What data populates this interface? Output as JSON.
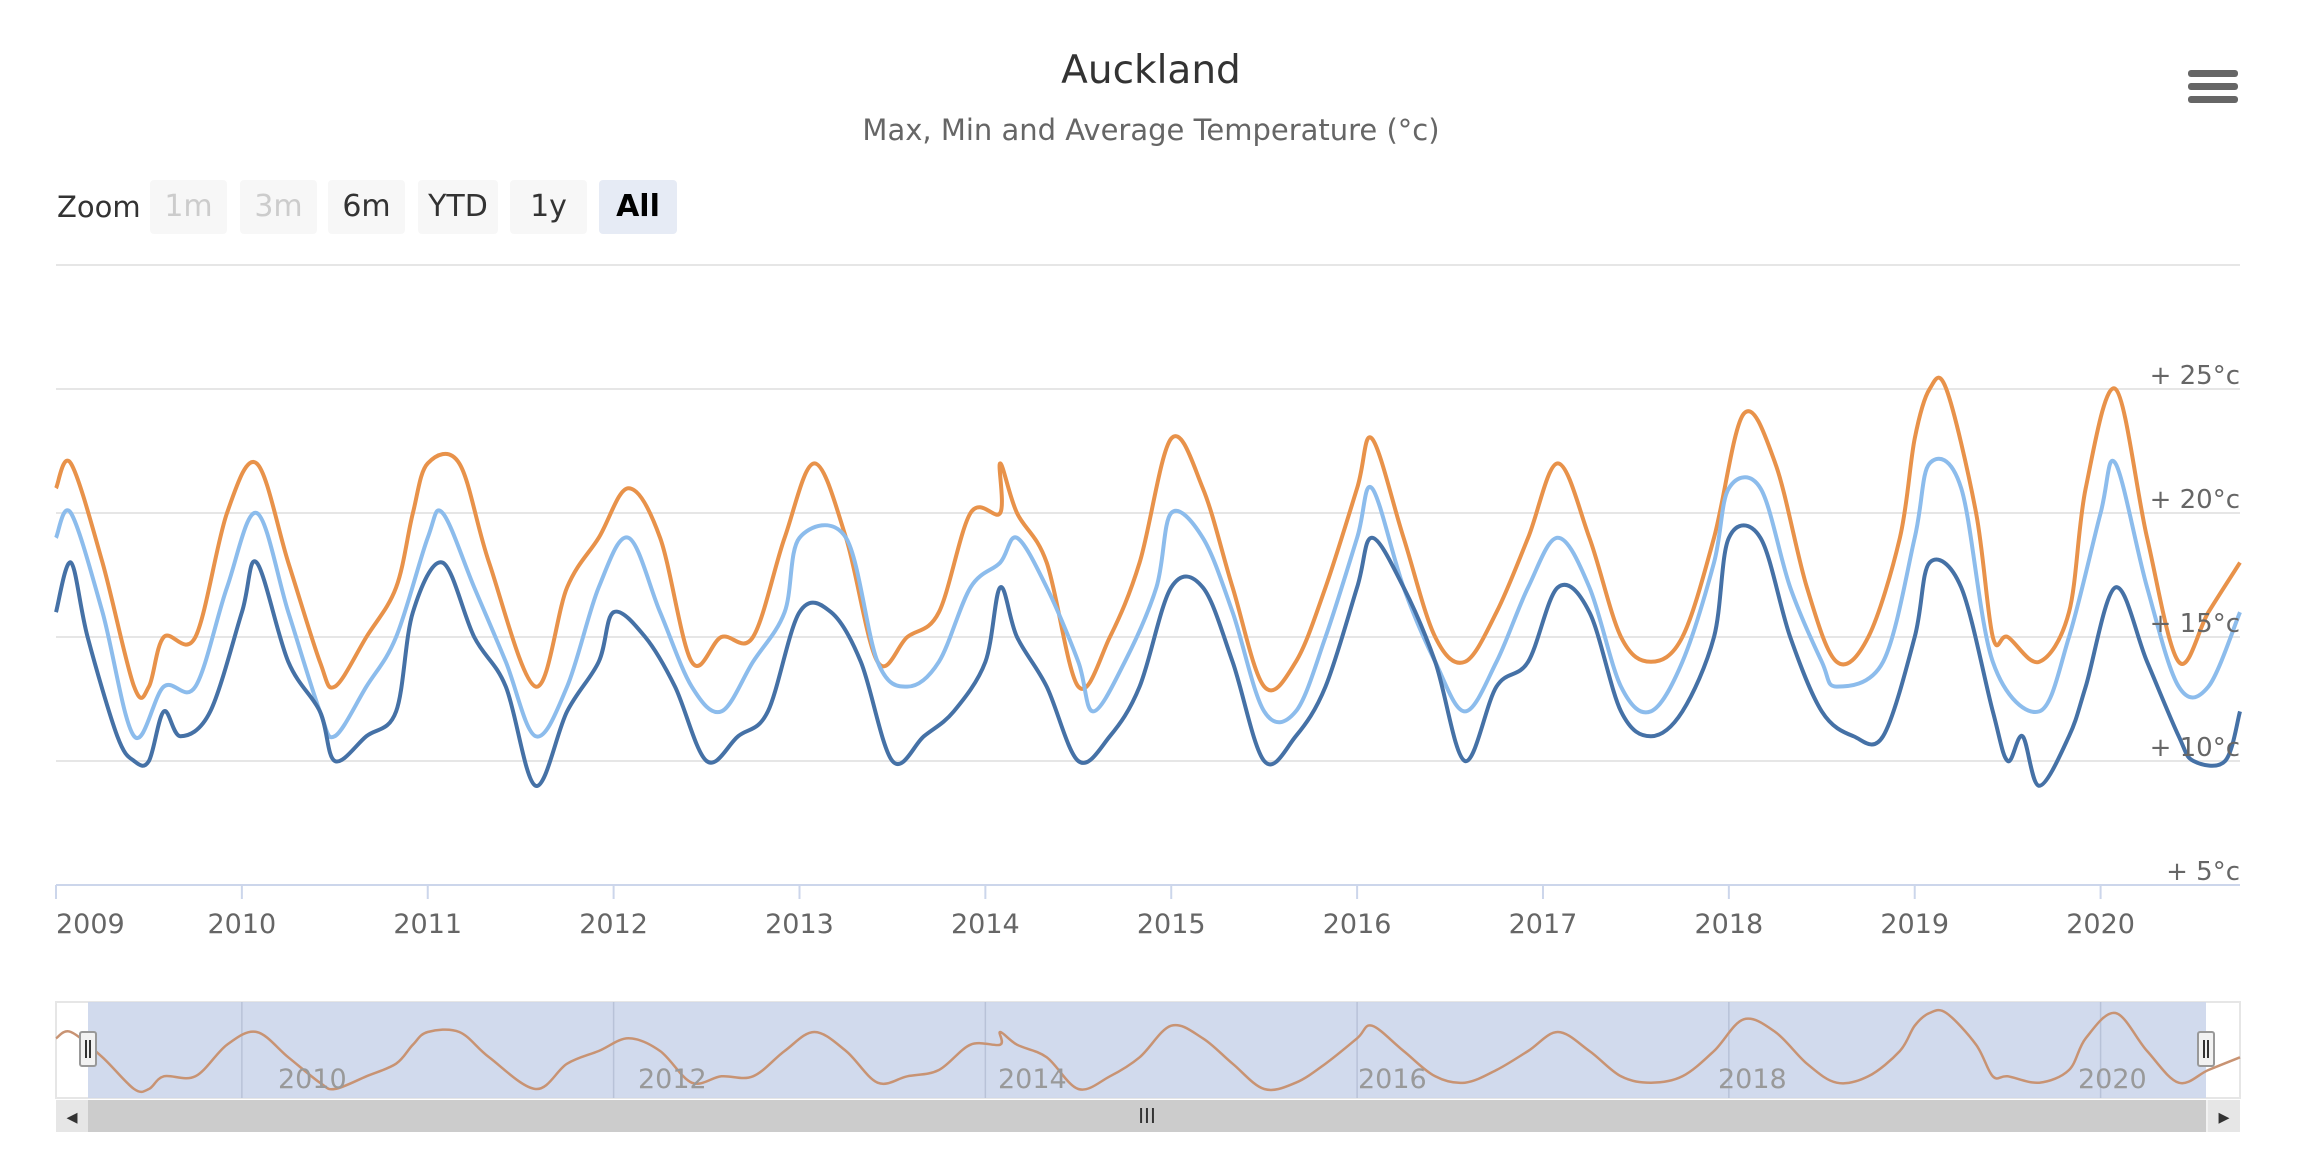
{
  "chart_title": "Auckland",
  "chart_subtitle": "Max, Min and Average Temperature (°c)",
  "menu_icon": "hamburger-menu-icon",
  "zoom": {
    "label": "Zoom",
    "buttons": [
      {
        "label": "1m",
        "state": "disabled"
      },
      {
        "label": "3m",
        "state": "disabled"
      },
      {
        "label": "6m",
        "state": "normal"
      },
      {
        "label": "YTD",
        "state": "normal"
      },
      {
        "label": "1y",
        "state": "normal"
      },
      {
        "label": "All",
        "state": "active"
      }
    ]
  },
  "navigator": {
    "tick_labels": [
      "2010",
      "2012",
      "2014",
      "2016",
      "2018",
      "2020"
    ],
    "scrollbar_grip": "III",
    "left_arrow": "◂",
    "right_arrow": "▸"
  },
  "colors": {
    "max": "#e8924a",
    "avg": "#8cbcec",
    "min": "#4571a6",
    "grid": "#e6e6e6",
    "navigator_mask": "#ccd6eb",
    "navigator_series": "#c89373"
  },
  "chart_data": {
    "type": "line",
    "title": "Auckland",
    "subtitle": "Max, Min and Average Temperature (°c)",
    "x_unit": "year",
    "xlim": [
      2009.0,
      2020.75
    ],
    "ylim": [
      5,
      30
    ],
    "y_ticks": [
      5,
      10,
      15,
      20,
      25
    ],
    "y_tick_labels": [
      "+ 5°c",
      "+ 10°c",
      "+ 15°c",
      "+ 20°c",
      "+ 25°c"
    ],
    "x_ticks": [
      2009,
      2010,
      2011,
      2012,
      2013,
      2014,
      2015,
      2016,
      2017,
      2018,
      2019,
      2020
    ],
    "x_tick_labels": [
      "2009",
      "2010",
      "2011",
      "2012",
      "2013",
      "2014",
      "2015",
      "2016",
      "2017",
      "2018",
      "2019",
      "2020"
    ],
    "grid": true,
    "legend": "none",
    "series": [
      {
        "key": "max",
        "points": [
          [
            2009.0,
            21
          ],
          [
            2009.08,
            22
          ],
          [
            2009.25,
            18
          ],
          [
            2009.42,
            13
          ],
          [
            2009.5,
            13
          ],
          [
            2009.58,
            15
          ],
          [
            2009.75,
            15
          ],
          [
            2009.92,
            20
          ],
          [
            2010.08,
            22
          ],
          [
            2010.25,
            18
          ],
          [
            2010.42,
            14
          ],
          [
            2010.5,
            13
          ],
          [
            2010.67,
            15
          ],
          [
            2010.83,
            17
          ],
          [
            2010.92,
            20
          ],
          [
            2011.0,
            22
          ],
          [
            2011.17,
            22
          ],
          [
            2011.33,
            18
          ],
          [
            2011.58,
            13
          ],
          [
            2011.75,
            17
          ],
          [
            2011.92,
            19
          ],
          [
            2012.08,
            21
          ],
          [
            2012.25,
            19
          ],
          [
            2012.42,
            14
          ],
          [
            2012.58,
            15
          ],
          [
            2012.75,
            15
          ],
          [
            2012.92,
            19
          ],
          [
            2013.08,
            22
          ],
          [
            2013.25,
            19
          ],
          [
            2013.42,
            14
          ],
          [
            2013.58,
            15
          ],
          [
            2013.75,
            16
          ],
          [
            2013.92,
            20
          ],
          [
            2014.08,
            20
          ],
          [
            2014.08,
            22
          ],
          [
            2014.17,
            20
          ],
          [
            2014.33,
            18
          ],
          [
            2014.5,
            13
          ],
          [
            2014.67,
            15
          ],
          [
            2014.83,
            18
          ],
          [
            2015.0,
            23
          ],
          [
            2015.17,
            21
          ],
          [
            2015.33,
            17
          ],
          [
            2015.5,
            13
          ],
          [
            2015.67,
            14
          ],
          [
            2015.83,
            17
          ],
          [
            2016.0,
            21
          ],
          [
            2016.08,
            23
          ],
          [
            2016.25,
            19
          ],
          [
            2016.42,
            15
          ],
          [
            2016.58,
            14
          ],
          [
            2016.75,
            16
          ],
          [
            2016.92,
            19
          ],
          [
            2017.08,
            22
          ],
          [
            2017.25,
            19
          ],
          [
            2017.42,
            15
          ],
          [
            2017.58,
            14
          ],
          [
            2017.75,
            15
          ],
          [
            2017.92,
            19
          ],
          [
            2018.08,
            24
          ],
          [
            2018.25,
            22
          ],
          [
            2018.42,
            17
          ],
          [
            2018.58,
            14
          ],
          [
            2018.75,
            15
          ],
          [
            2018.92,
            19
          ],
          [
            2019.0,
            23
          ],
          [
            2019.08,
            25
          ],
          [
            2019.17,
            25
          ],
          [
            2019.33,
            20
          ],
          [
            2019.42,
            15
          ],
          [
            2019.5,
            15
          ],
          [
            2019.67,
            14
          ],
          [
            2019.83,
            16
          ],
          [
            2019.92,
            21
          ],
          [
            2020.08,
            25
          ],
          [
            2020.25,
            19
          ],
          [
            2020.42,
            14
          ],
          [
            2020.58,
            16
          ],
          [
            2020.75,
            18
          ]
        ]
      },
      {
        "key": "avg",
        "points": [
          [
            2009.0,
            19
          ],
          [
            2009.08,
            20
          ],
          [
            2009.25,
            16
          ],
          [
            2009.42,
            11
          ],
          [
            2009.58,
            13
          ],
          [
            2009.75,
            13
          ],
          [
            2009.92,
            17
          ],
          [
            2010.08,
            20
          ],
          [
            2010.25,
            16
          ],
          [
            2010.42,
            12
          ],
          [
            2010.5,
            11
          ],
          [
            2010.67,
            13
          ],
          [
            2010.83,
            15
          ],
          [
            2011.0,
            19
          ],
          [
            2011.08,
            20
          ],
          [
            2011.25,
            17
          ],
          [
            2011.42,
            14
          ],
          [
            2011.58,
            11
          ],
          [
            2011.75,
            13
          ],
          [
            2011.92,
            17
          ],
          [
            2012.08,
            19
          ],
          [
            2012.25,
            16
          ],
          [
            2012.42,
            13
          ],
          [
            2012.58,
            12
          ],
          [
            2012.75,
            14
          ],
          [
            2012.92,
            16
          ],
          [
            2013.0,
            19
          ],
          [
            2013.25,
            19
          ],
          [
            2013.42,
            14
          ],
          [
            2013.58,
            13
          ],
          [
            2013.75,
            14
          ],
          [
            2013.92,
            17
          ],
          [
            2014.08,
            18
          ],
          [
            2014.17,
            19
          ],
          [
            2014.33,
            17
          ],
          [
            2014.5,
            14
          ],
          [
            2014.58,
            12
          ],
          [
            2014.75,
            14
          ],
          [
            2014.92,
            17
          ],
          [
            2015.0,
            20
          ],
          [
            2015.17,
            19
          ],
          [
            2015.33,
            16
          ],
          [
            2015.5,
            12
          ],
          [
            2015.67,
            12
          ],
          [
            2015.83,
            15
          ],
          [
            2016.0,
            19
          ],
          [
            2016.08,
            21
          ],
          [
            2016.25,
            17
          ],
          [
            2016.42,
            14
          ],
          [
            2016.58,
            12
          ],
          [
            2016.75,
            14
          ],
          [
            2016.92,
            17
          ],
          [
            2017.08,
            19
          ],
          [
            2017.25,
            17
          ],
          [
            2017.42,
            13
          ],
          [
            2017.58,
            12
          ],
          [
            2017.75,
            14
          ],
          [
            2017.92,
            18
          ],
          [
            2018.0,
            21
          ],
          [
            2018.17,
            21
          ],
          [
            2018.33,
            17
          ],
          [
            2018.5,
            14
          ],
          [
            2018.58,
            13
          ],
          [
            2018.83,
            14
          ],
          [
            2019.0,
            19
          ],
          [
            2019.08,
            22
          ],
          [
            2019.25,
            21
          ],
          [
            2019.42,
            14
          ],
          [
            2019.67,
            12
          ],
          [
            2019.83,
            15
          ],
          [
            2020.0,
            20
          ],
          [
            2020.08,
            22
          ],
          [
            2020.25,
            17
          ],
          [
            2020.42,
            13
          ],
          [
            2020.58,
            13
          ],
          [
            2020.75,
            16
          ]
        ]
      },
      {
        "key": "min",
        "points": [
          [
            2009.0,
            16
          ],
          [
            2009.08,
            18
          ],
          [
            2009.17,
            15
          ],
          [
            2009.33,
            11
          ],
          [
            2009.42,
            10
          ],
          [
            2009.5,
            10
          ],
          [
            2009.58,
            12
          ],
          [
            2009.67,
            11
          ],
          [
            2009.83,
            12
          ],
          [
            2010.0,
            16
          ],
          [
            2010.08,
            18
          ],
          [
            2010.25,
            14
          ],
          [
            2010.42,
            12
          ],
          [
            2010.5,
            10
          ],
          [
            2010.67,
            11
          ],
          [
            2010.83,
            12
          ],
          [
            2010.92,
            16
          ],
          [
            2011.08,
            18
          ],
          [
            2011.25,
            15
          ],
          [
            2011.42,
            13
          ],
          [
            2011.58,
            9
          ],
          [
            2011.75,
            12
          ],
          [
            2011.92,
            14
          ],
          [
            2012.0,
            16
          ],
          [
            2012.17,
            15
          ],
          [
            2012.33,
            13
          ],
          [
            2012.5,
            10
          ],
          [
            2012.67,
            11
          ],
          [
            2012.83,
            12
          ],
          [
            2013.0,
            16
          ],
          [
            2013.17,
            16
          ],
          [
            2013.33,
            14
          ],
          [
            2013.5,
            10
          ],
          [
            2013.67,
            11
          ],
          [
            2013.83,
            12
          ],
          [
            2014.0,
            14
          ],
          [
            2014.08,
            17
          ],
          [
            2014.17,
            15
          ],
          [
            2014.33,
            13
          ],
          [
            2014.5,
            10
          ],
          [
            2014.67,
            11
          ],
          [
            2014.83,
            13
          ],
          [
            2015.0,
            17
          ],
          [
            2015.17,
            17
          ],
          [
            2015.33,
            14
          ],
          [
            2015.5,
            10
          ],
          [
            2015.67,
            11
          ],
          [
            2015.83,
            13
          ],
          [
            2016.0,
            17
          ],
          [
            2016.08,
            19
          ],
          [
            2016.25,
            17
          ],
          [
            2016.42,
            14
          ],
          [
            2016.58,
            10
          ],
          [
            2016.75,
            13
          ],
          [
            2016.92,
            14
          ],
          [
            2017.08,
            17
          ],
          [
            2017.25,
            16
          ],
          [
            2017.42,
            12
          ],
          [
            2017.58,
            11
          ],
          [
            2017.75,
            12
          ],
          [
            2017.92,
            15
          ],
          [
            2018.0,
            19
          ],
          [
            2018.17,
            19
          ],
          [
            2018.33,
            15
          ],
          [
            2018.5,
            12
          ],
          [
            2018.67,
            11
          ],
          [
            2018.83,
            11
          ],
          [
            2019.0,
            15
          ],
          [
            2019.08,
            18
          ],
          [
            2019.25,
            17
          ],
          [
            2019.42,
            12
          ],
          [
            2019.5,
            10
          ],
          [
            2019.58,
            11
          ],
          [
            2019.67,
            9
          ],
          [
            2019.83,
            11
          ],
          [
            2019.92,
            13
          ],
          [
            2020.08,
            17
          ],
          [
            2020.25,
            14
          ],
          [
            2020.42,
            11
          ],
          [
            2020.5,
            10
          ],
          [
            2020.67,
            10
          ],
          [
            2020.75,
            12
          ]
        ]
      }
    ]
  }
}
